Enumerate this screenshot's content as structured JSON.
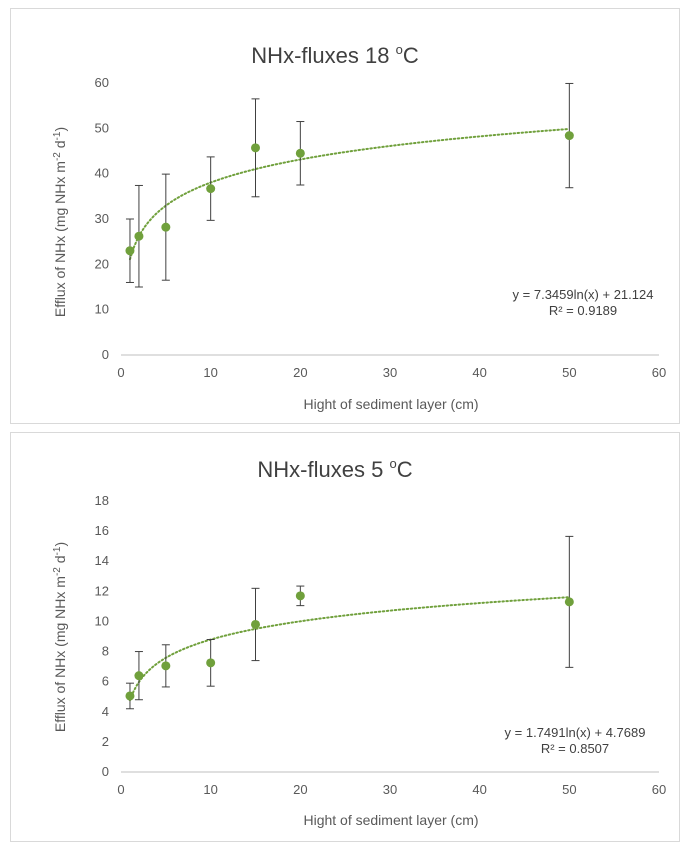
{
  "chart_data": [
    {
      "type": "scatter",
      "title": "NHx-fluxes 18 ",
      "title_unit": "C",
      "title_degree": "o",
      "xlabel": "Hight of sediment layer (cm)",
      "ylabel": "Efflux of NHx (mg NHx m",
      "ylabel_sup1": "-2",
      "ylabel_mid": " d",
      "ylabel_sup2": "-1",
      "ylabel_end": ")",
      "xlim": [
        0,
        60
      ],
      "ylim": [
        0,
        60
      ],
      "xticks": [
        0,
        10,
        20,
        30,
        40,
        50,
        60
      ],
      "yticks": [
        0,
        10,
        20,
        30,
        40,
        50,
        60
      ],
      "x": [
        1,
        2,
        5,
        10,
        15,
        20,
        50
      ],
      "y": [
        23,
        26.2,
        28.2,
        36.7,
        45.7,
        44.5,
        48.4
      ],
      "error": [
        7,
        11.2,
        11.7,
        7,
        10.8,
        7,
        11.5
      ],
      "trendline": {
        "type": "log",
        "a": 7.3459,
        "b": 21.124
      },
      "equation": "y = 7.3459ln(x) + 21.124",
      "r_squared": "R² = 0.9189",
      "marker_color": "#70a03c",
      "trend_color": "#70a03c",
      "grid": false
    },
    {
      "type": "scatter",
      "title": "NHx-fluxes 5 ",
      "title_unit": "C",
      "title_degree": "o",
      "xlabel": "Hight of sediment layer (cm)",
      "ylabel": "Efflux of NHx (mg NHx m",
      "ylabel_sup1": "-2",
      "ylabel_mid": " d",
      "ylabel_sup2": "-1",
      "ylabel_end": ")",
      "xlim": [
        0,
        60
      ],
      "ylim": [
        0,
        18
      ],
      "xticks": [
        0,
        10,
        20,
        30,
        40,
        50,
        60
      ],
      "yticks": [
        0,
        2,
        4,
        6,
        8,
        10,
        12,
        14,
        16,
        18
      ],
      "x": [
        1,
        2,
        5,
        10,
        15,
        20,
        50
      ],
      "y": [
        5.05,
        6.4,
        7.05,
        7.25,
        9.8,
        11.7,
        11.3
      ],
      "error": [
        0.85,
        1.6,
        1.4,
        1.55,
        2.4,
        0.65,
        4.35
      ],
      "trendline": {
        "type": "log",
        "a": 1.7491,
        "b": 4.7689
      },
      "equation": "y = 1.7491ln(x) + 4.7689",
      "r_squared": "R² = 0.8507",
      "marker_color": "#70a03c",
      "trend_color": "#70a03c",
      "grid": false
    }
  ]
}
